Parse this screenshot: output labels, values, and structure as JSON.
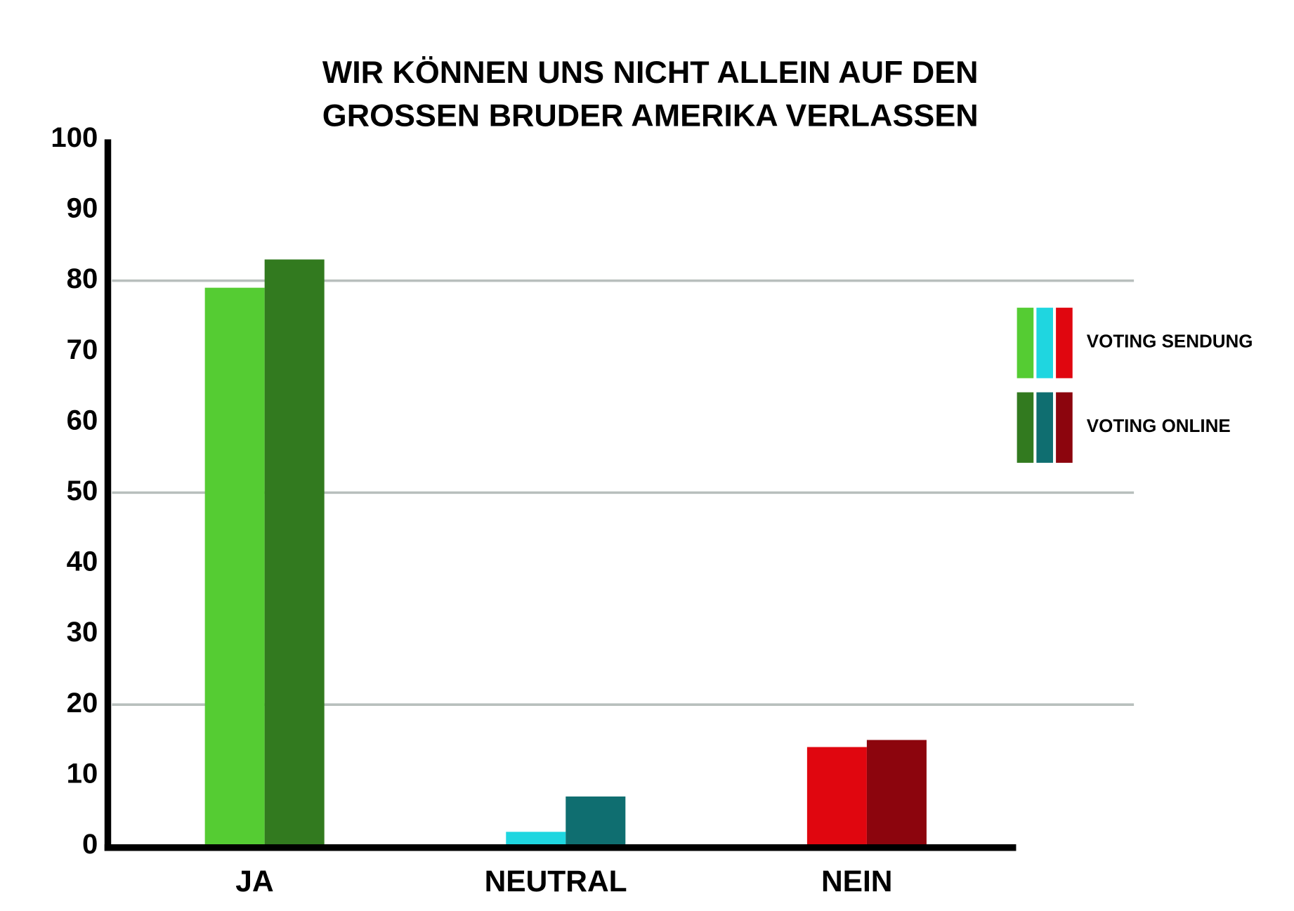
{
  "chart_data": {
    "type": "bar",
    "title": [
      "WIR KÖNNEN UNS NICHT ALLEIN AUF DEN",
      "GROSSEN BRUDER AMERIKA VERLASSEN"
    ],
    "categories": [
      "JA",
      "NEUTRAL",
      "NEIN"
    ],
    "series": [
      {
        "name": "VOTING SENDUNG",
        "color": [
          "#55cc33",
          "#1fd6e0",
          "#e0060f"
        ],
        "values": [
          79,
          2,
          14
        ]
      },
      {
        "name": "VOTING ONLINE",
        "color": [
          "#327a1f",
          "#0f6e70",
          "#8c050d"
        ],
        "values": [
          83,
          7,
          15
        ]
      }
    ],
    "ylim": [
      0,
      100
    ],
    "yticks": [
      0,
      10,
      20,
      30,
      40,
      50,
      60,
      70,
      80,
      90,
      100
    ],
    "grid_lines": [
      20,
      50,
      80
    ],
    "legend": "right"
  }
}
